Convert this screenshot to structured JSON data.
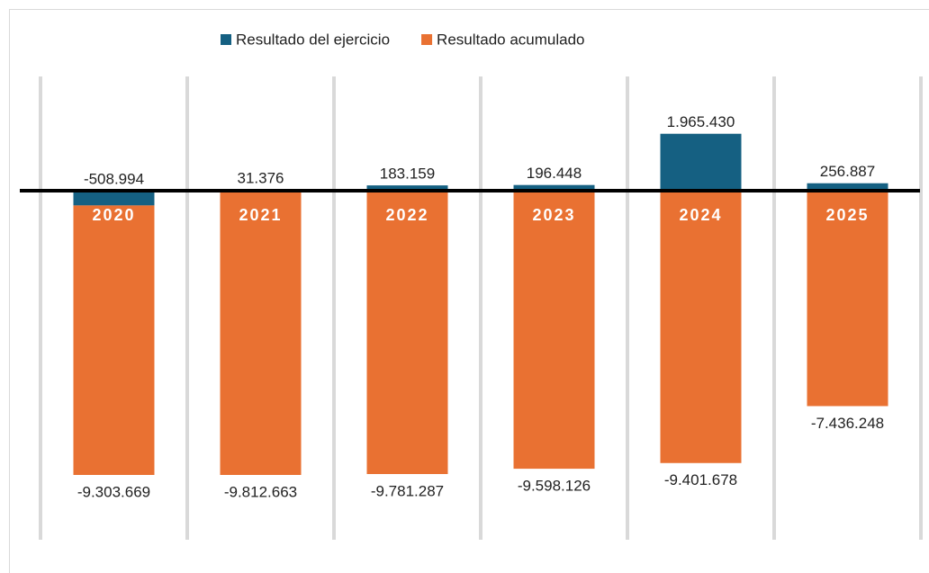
{
  "chart_data": {
    "type": "bar",
    "stacked": true,
    "categories": [
      "2020",
      "2021",
      "2022",
      "2023",
      "2024",
      "2025"
    ],
    "series": [
      {
        "name": "Resultado del ejercicio",
        "color": "#156082",
        "values": [
          -508994,
          31376,
          183159,
          196448,
          1965430,
          256887
        ],
        "value_labels": [
          "-508.994",
          "31.376",
          "183.159",
          "196.448",
          "1.965.430",
          "256.887"
        ]
      },
      {
        "name": "Resultado acumulado",
        "color": "#e97132",
        "values": [
          -9303669,
          -9812663,
          -9781287,
          -9598126,
          -9401678,
          -7436248
        ],
        "value_labels": [
          "-9.303.669",
          "-9.812.663",
          "-9.781.287",
          "-9.598.126",
          "-9.401.678",
          "-7.436.248"
        ]
      }
    ]
  }
}
